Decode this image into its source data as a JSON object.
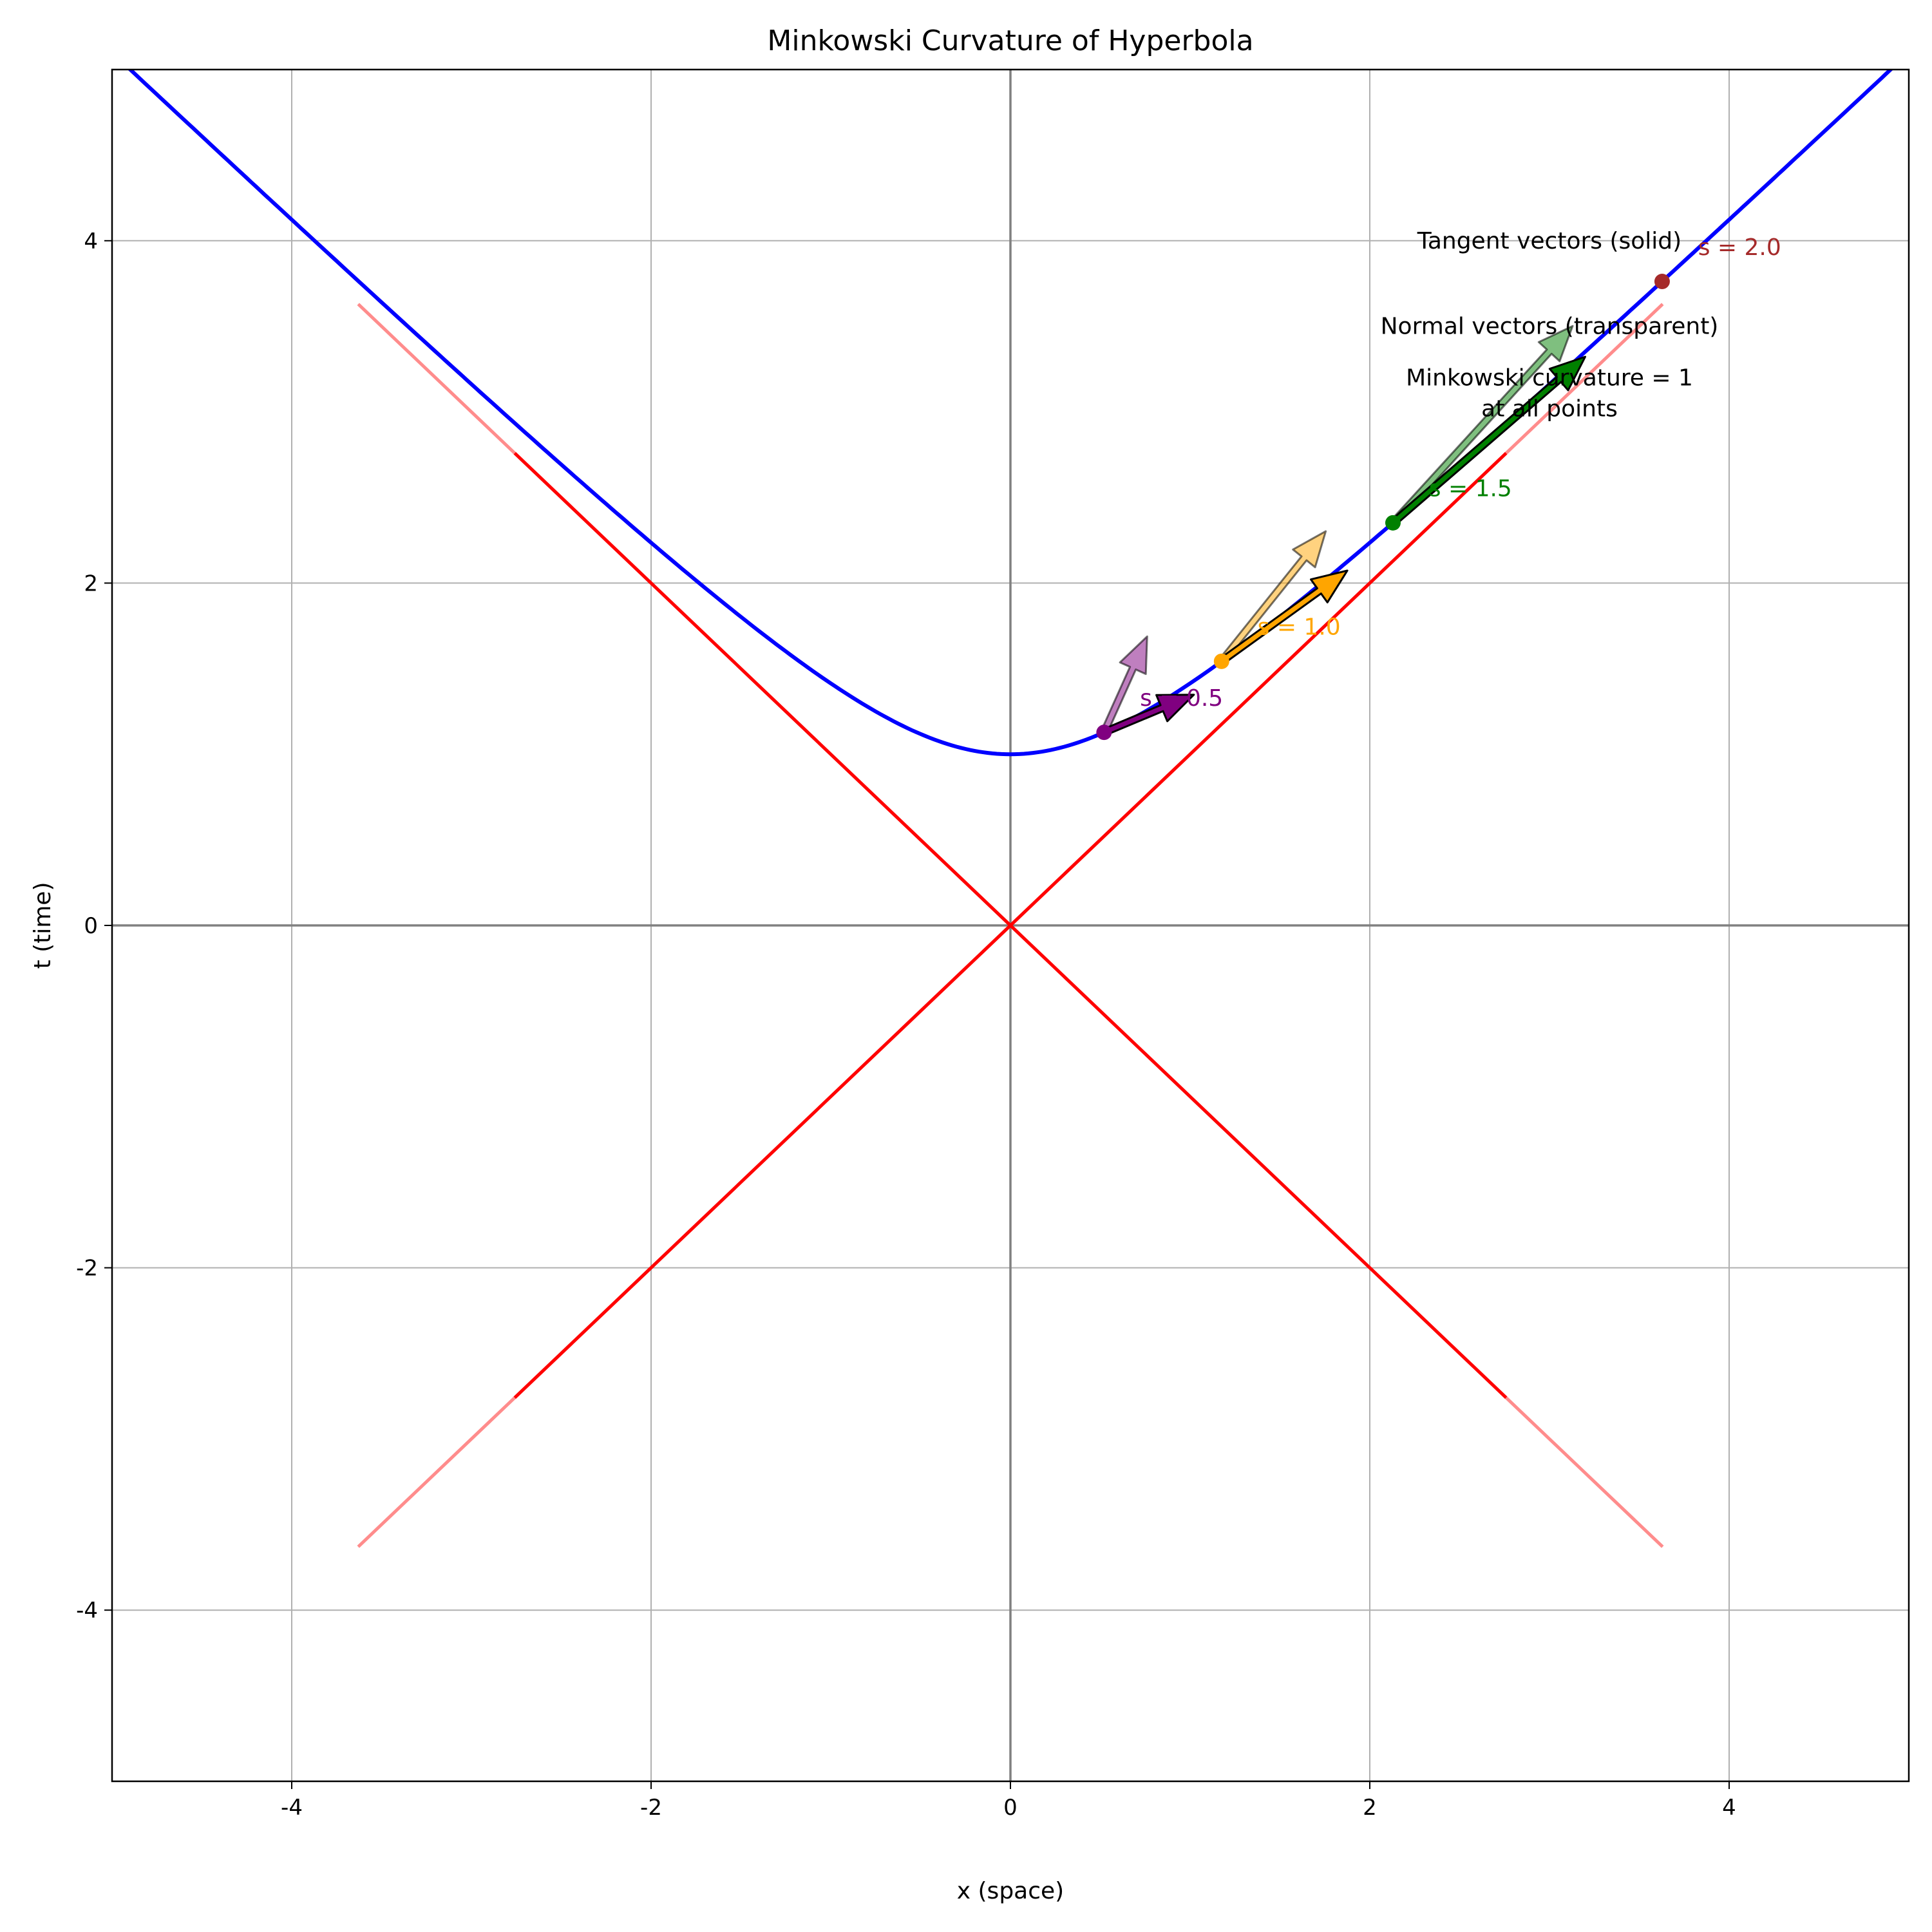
{
  "chart_data": {
    "type": "line",
    "title": "Minkowski Curvature of Hyperbola",
    "xlabel": "x (space)",
    "ylabel": "t (time)",
    "xlim": [
      -5,
      5
    ],
    "ylim": [
      -5,
      5
    ],
    "grid": true,
    "x_ticks": [
      -4,
      -2,
      0,
      2,
      4
    ],
    "y_ticks": [
      -4,
      -2,
      0,
      2,
      4
    ],
    "x_tick_labels": [
      "-4",
      "-2",
      "0",
      "2",
      "4"
    ],
    "y_tick_labels": [
      "-4",
      "-2",
      "0",
      "2",
      "4"
    ],
    "series": [
      {
        "type": "function",
        "formula": "t = sqrt(1 + x^2)",
        "x_range": [
          -5,
          5
        ],
        "color": "#0000ff"
      },
      {
        "type": "segment",
        "from": [
          -3.63,
          -3.63
        ],
        "to": [
          3.63,
          3.63
        ],
        "color": "#ff0000"
      },
      {
        "type": "segment",
        "from": [
          -3.63,
          3.63
        ],
        "to": [
          3.63,
          -3.63
        ],
        "color": "#ff0000"
      }
    ],
    "points": [
      {
        "s": 0.5,
        "label": "s = 0.5",
        "x": 0.521,
        "t": 1.128,
        "color": "#800080",
        "tangent": [
          0.5,
          0.22
        ],
        "normal": [
          0.24,
          0.56
        ]
      },
      {
        "s": 1.0,
        "label": "s = 1.0",
        "x": 1.175,
        "t": 1.543,
        "color": "#ffa500",
        "tangent": [
          0.7,
          0.53
        ],
        "normal": [
          0.58,
          0.76
        ]
      },
      {
        "s": 1.5,
        "label": "s = 1.5",
        "x": 2.129,
        "t": 2.352,
        "color": "#008000",
        "tangent": [
          1.07,
          0.97
        ],
        "normal": [
          1.0,
          1.15
        ]
      },
      {
        "s": 2.0,
        "label": "s = 2.0",
        "x": 3.627,
        "t": 3.762,
        "color": "#a52a2a",
        "tangent": null,
        "normal": null
      }
    ],
    "annotations": [
      {
        "text": "Tangent vectors (solid)",
        "x": 3.0,
        "t": 4.0
      },
      {
        "text": "Normal vectors (transparent)",
        "x": 3.0,
        "t": 3.5
      },
      {
        "text": "Minkowski curvature = 1",
        "x": 3.0,
        "t": 3.2
      },
      {
        "text": "at all points",
        "x": 3.0,
        "t": 3.02
      }
    ]
  }
}
